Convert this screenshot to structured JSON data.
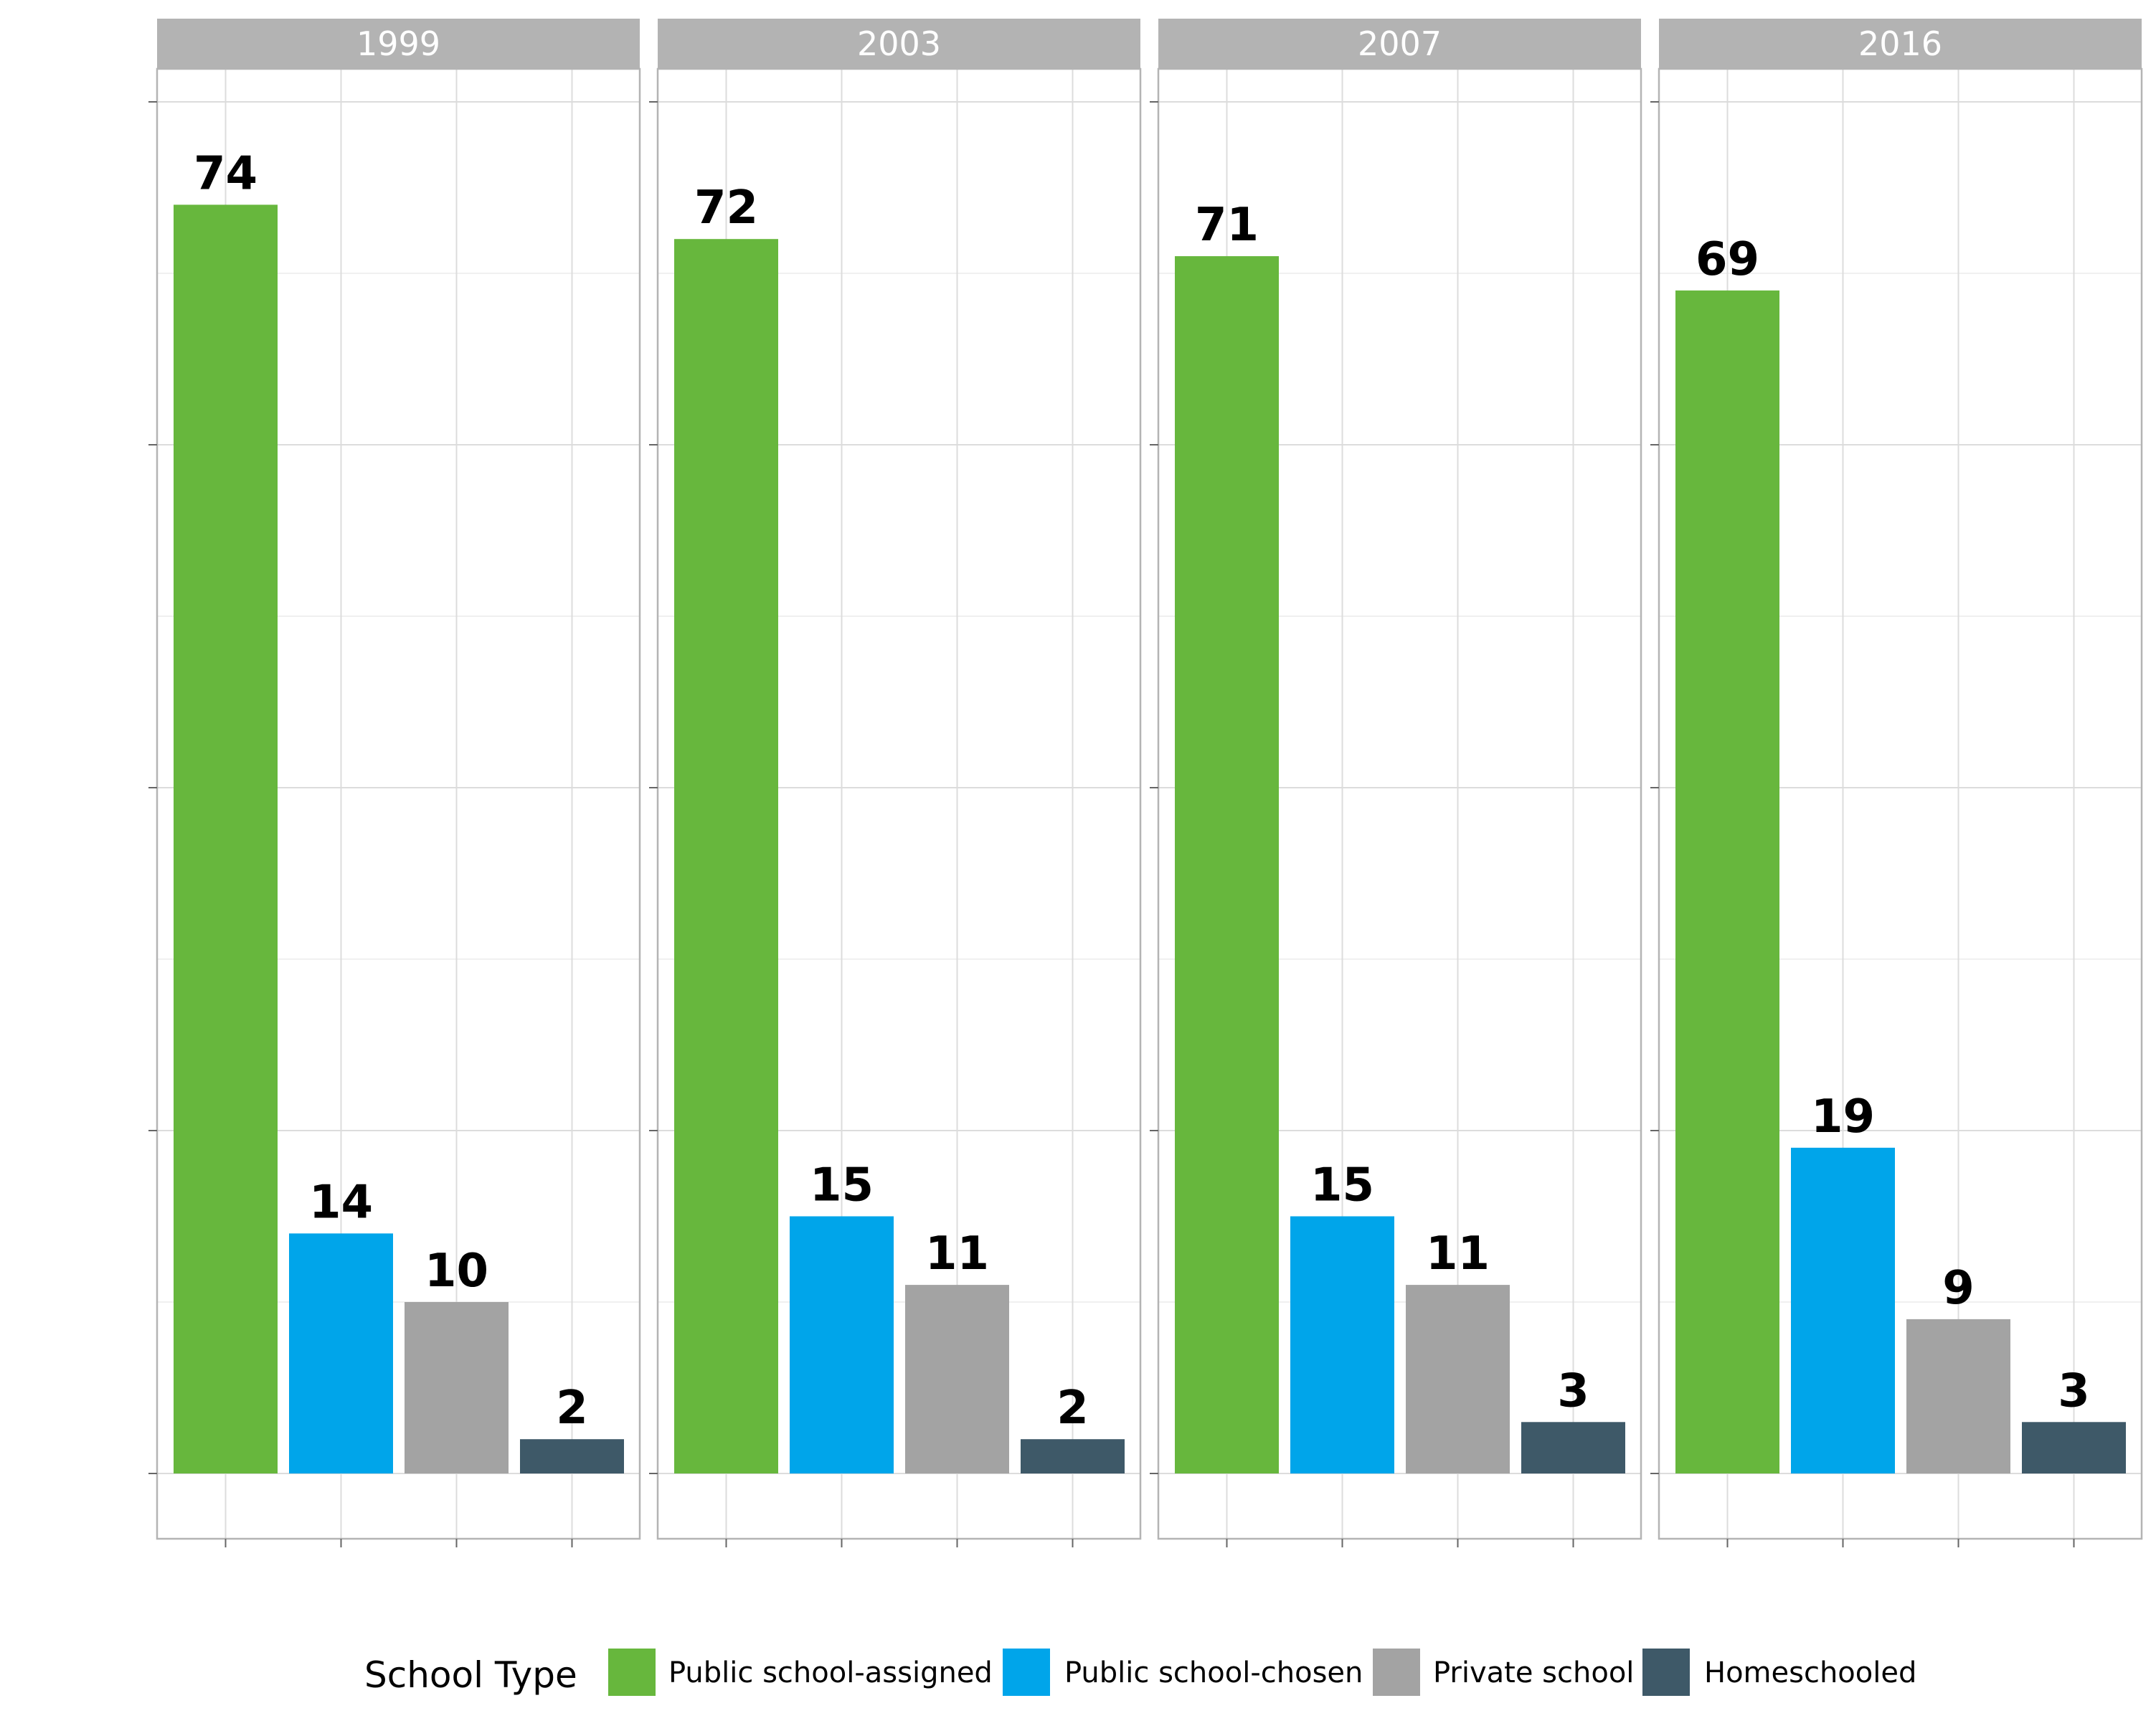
{
  "chart_data": {
    "type": "bar",
    "title": "",
    "xlabel": "",
    "ylabel": "",
    "ylim": [
      0,
      80
    ],
    "grid": true,
    "legend_position": "bottom",
    "facets": [
      "1999",
      "2003",
      "2007",
      "2016"
    ],
    "categories": [
      "Public school-assigned",
      "Public school-chosen",
      "Private school",
      "Homeschooled"
    ],
    "colors": [
      "#67b73d",
      "#00a5ea",
      "#a3a3a3",
      "#3e5968"
    ],
    "values": [
      [
        74,
        14,
        10,
        2
      ],
      [
        72,
        15,
        11,
        2
      ],
      [
        71,
        15,
        11,
        3
      ],
      [
        69,
        19,
        9,
        3
      ]
    ],
    "legend": {
      "title": "School Type",
      "entries": [
        "Public school-assigned",
        "Public school-chosen",
        "Private school",
        "Homeschooled"
      ]
    }
  }
}
